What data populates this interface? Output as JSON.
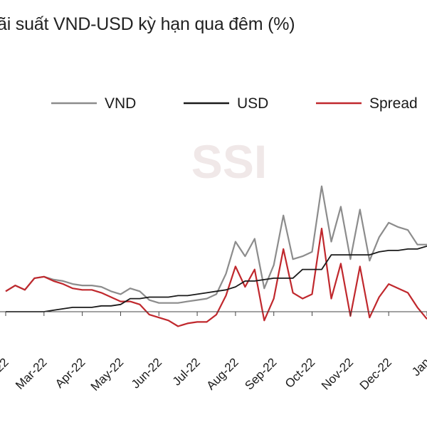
{
  "title": "ãi suất VND-USD kỳ hạn qua đêm (%)",
  "watermark": "SSI",
  "chart_data": {
    "type": "line",
    "title": "ãi suất VND-USD kỳ hạn qua đêm (%)",
    "xlabel": "",
    "ylabel": "",
    "legend_position": "top",
    "grid": false,
    "ylim": [
      -1,
      10
    ],
    "x_ticks": [
      "22",
      "Mar-22",
      "Apr-22",
      "May-22",
      "Jun-22",
      "Jul-22",
      "Aug-22",
      "Sep-22",
      "Oct-22",
      "Nov-22",
      "Dec-22",
      "Jan"
    ],
    "x": [
      0,
      0.25,
      0.5,
      0.75,
      1,
      1.25,
      1.5,
      1.75,
      2,
      2.25,
      2.5,
      2.75,
      3,
      3.25,
      3.5,
      3.75,
      4,
      4.25,
      4.5,
      4.75,
      5,
      5.25,
      5.5,
      5.75,
      6,
      6.25,
      6.5,
      6.75,
      7,
      7.25,
      7.5,
      7.75,
      8,
      8.25,
      8.5,
      8.75,
      9,
      9.25,
      9.5,
      9.75,
      10,
      10.25,
      10.5,
      10.75,
      11
    ],
    "series": [
      {
        "name": "VND",
        "color": "#8c8c8c",
        "values": [
          1.4,
          1.8,
          1.5,
          2.3,
          2.4,
          2.2,
          2.1,
          1.9,
          1.8,
          1.8,
          1.7,
          1.4,
          1.2,
          1.6,
          1.4,
          0.8,
          0.6,
          0.6,
          0.6,
          0.7,
          0.8,
          0.9,
          1.2,
          2.6,
          4.8,
          3.8,
          5.0,
          1.6,
          3.2,
          6.6,
          3.6,
          3.8,
          4.1,
          8.6,
          4.8,
          7.2,
          3.6,
          7.0,
          3.5,
          5.1,
          6.1,
          5.8,
          5.6,
          4.6,
          4.6
        ]
      },
      {
        "name": "USD",
        "color": "#1a1a1a",
        "values": [
          0.0,
          0.0,
          0.0,
          0.0,
          0.0,
          0.1,
          0.2,
          0.3,
          0.3,
          0.3,
          0.4,
          0.4,
          0.5,
          0.9,
          0.9,
          1.0,
          1.0,
          1.0,
          1.1,
          1.1,
          1.2,
          1.3,
          1.4,
          1.5,
          1.7,
          2.1,
          2.1,
          2.2,
          2.3,
          2.3,
          2.3,
          2.9,
          2.9,
          2.9,
          3.9,
          3.9,
          3.9,
          3.9,
          3.9,
          4.1,
          4.2,
          4.2,
          4.3,
          4.3,
          4.5
        ]
      },
      {
        "name": "Spread",
        "color": "#c0282d",
        "values": [
          1.4,
          1.8,
          1.5,
          2.3,
          2.4,
          2.1,
          1.9,
          1.6,
          1.5,
          1.5,
          1.3,
          1.0,
          0.7,
          0.7,
          0.5,
          -0.2,
          -0.4,
          -0.6,
          -1.0,
          -0.8,
          -0.7,
          -0.7,
          -0.2,
          1.1,
          3.1,
          1.7,
          2.9,
          -0.6,
          0.9,
          4.3,
          1.3,
          0.9,
          1.2,
          5.7,
          0.9,
          3.3,
          -0.3,
          3.1,
          -0.4,
          1.0,
          1.9,
          1.6,
          1.3,
          0.3,
          -0.5
        ]
      }
    ]
  }
}
